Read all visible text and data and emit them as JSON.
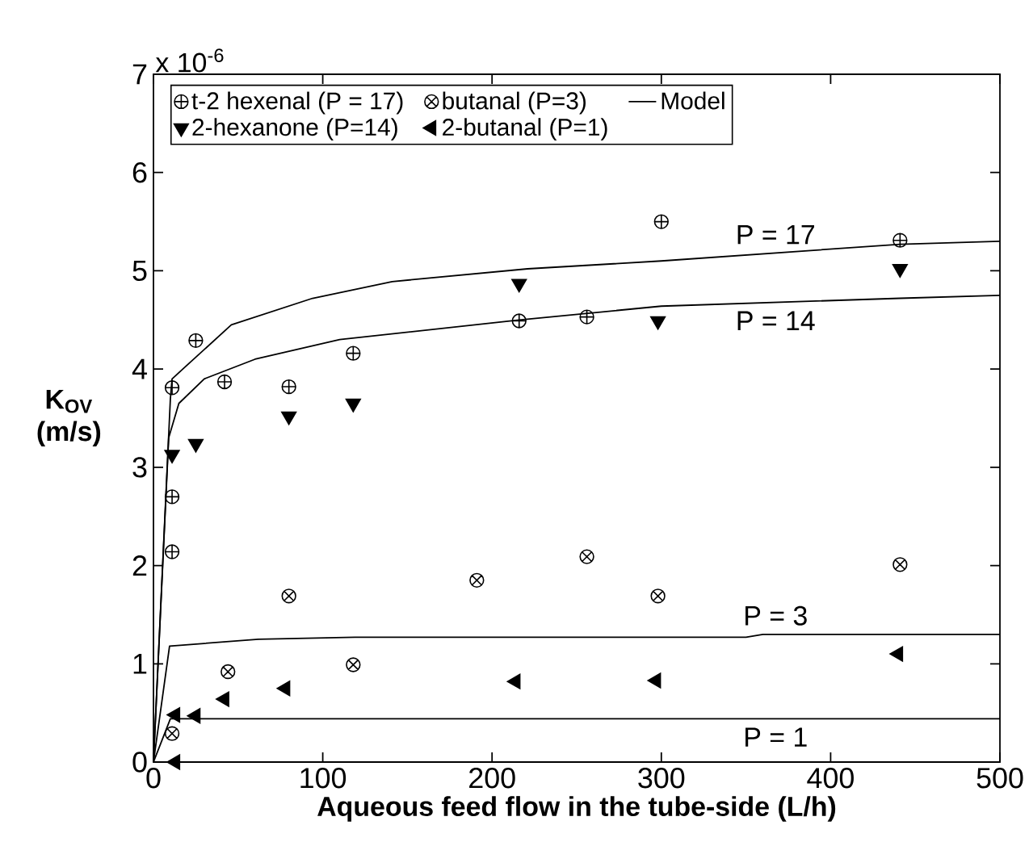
{
  "chart_data": {
    "type": "scatter",
    "xlabel": "Aqueous feed flow in the tube-side (L/h)",
    "ylabel": "K$_{OV}$ (m/s)",
    "xlim": [
      0,
      500
    ],
    "ylim": [
      0,
      7
    ],
    "xticks": [
      0,
      100,
      200,
      300,
      400,
      500
    ],
    "yticks": [
      0,
      1,
      2,
      3,
      4,
      5,
      6,
      7
    ],
    "grid": false,
    "legend": "top left",
    "annotations": [
      "x 10$^{-6}$",
      "P = 17",
      "P = 14",
      "P = 3",
      "P = 1"
    ],
    "series": [
      {
        "name": "t-2 hexenal (P = 17)",
        "color": "#000000",
        "x": [
          11,
          11,
          11,
          25,
          42,
          80,
          118,
          216,
          256,
          300,
          441
        ],
        "values": [
          2.14,
          2.7,
          3.81,
          4.29,
          3.87,
          3.82,
          4.16,
          4.49,
          4.53,
          5.5,
          5.31
        ]
      },
      {
        "name": "butanal (P=3)",
        "color": "#000000",
        "x": [
          11,
          44,
          80,
          118,
          191,
          256,
          298,
          441
        ],
        "values": [
          0.29,
          0.92,
          1.69,
          0.99,
          1.85,
          2.09,
          1.69,
          2.01
        ]
      },
      {
        "name": "Model",
        "type": "line",
        "marker": "none",
        "line_style": "solid",
        "color": "#000000",
        "x": [
          0,
          10,
          11,
          18,
          46,
          94,
          141,
          221,
          300,
          441,
          500
        ],
        "values": [
          0,
          3.7,
          3.9,
          4.01,
          4.45,
          4.72,
          4.89,
          5.02,
          5.1,
          5.27,
          5.3
        ]
      },
      {
        "name": "2-hexanone (P=14)",
        "color": "#000000",
        "x": [
          11,
          25,
          80,
          118,
          216,
          298,
          441
        ],
        "values": [
          3.13,
          3.24,
          3.52,
          3.65,
          4.87,
          4.49,
          5.02
        ]
      },
      {
        "name": "2-butanal (P=1)",
        "color": "#000000",
        "x": [
          13,
          13,
          25,
          42,
          78,
          214,
          297,
          440
        ],
        "values": [
          0,
          0.48,
          0.47,
          0.64,
          0.75,
          0.82,
          0.83,
          1.1
        ]
      },
      {
        "type": "line",
        "marker": "none",
        "line_style": "solid",
        "color": "#000000",
        "x": [
          0,
          9,
          15,
          30,
          60,
          110,
          216,
          300,
          441,
          500
        ],
        "values": [
          0,
          3.3,
          3.65,
          3.9,
          4.1,
          4.3,
          4.5,
          4.64,
          4.72,
          4.75
        ]
      },
      {
        "type": "line",
        "marker": "none",
        "line_style": "solid",
        "color": "#000000",
        "x": [
          0,
          9.5,
          62,
          119,
          350,
          360,
          500
        ],
        "values": [
          0,
          1.18,
          1.25,
          1.27,
          1.27,
          1.3,
          1.3
        ]
      },
      {
        "type": "line",
        "marker": "none",
        "line_style": "solid",
        "color": "#000000",
        "x": [
          0,
          10,
          500
        ],
        "values": [
          0,
          0.44,
          0.44
        ]
      }
    ]
  }
}
